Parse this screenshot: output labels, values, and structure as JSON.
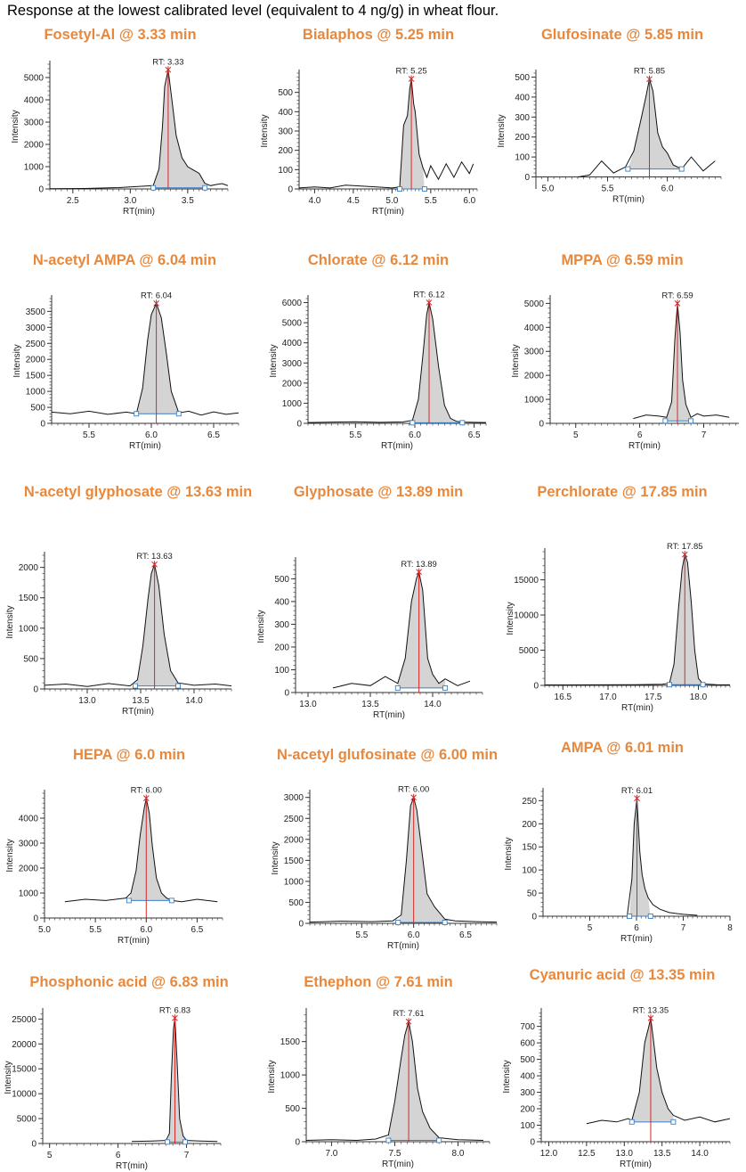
{
  "header": {
    "title": "Response at the lowest calibrated level (equivalent to 4 ng/g) in wheat flour."
  },
  "colors": {
    "title": "#e8883c",
    "peak_fill": "#d4d4d4",
    "trace": "#111111",
    "rt_line": "#d62828",
    "baseline": "#3a7fc4"
  },
  "chart_data": [
    {
      "type": "line",
      "title": "Fosetyl-Al @ 3.33 min",
      "xlabel": "RT(min)",
      "ylabel": "Intensity",
      "rt_label": "RT: 3.33",
      "xlim": [
        2.3,
        3.85
      ],
      "ylim": [
        0,
        5600
      ],
      "xticks": [
        2.5,
        3.0,
        3.5
      ],
      "yticks": [
        0,
        1000,
        2000,
        3000,
        4000,
        5000
      ],
      "xtick_labels": [
        "2.5",
        "3.0",
        "3.5"
      ],
      "ytick_labels": [
        "0",
        "1000",
        "2000",
        "3000",
        "4000",
        "5000"
      ],
      "peak": {
        "rt": 3.33,
        "height": 5350,
        "start": 3.2,
        "end": 3.65,
        "base": 50
      },
      "x": [
        2.3,
        2.6,
        2.9,
        3.1,
        3.2,
        3.25,
        3.28,
        3.3,
        3.33,
        3.36,
        3.4,
        3.45,
        3.5,
        3.55,
        3.6,
        3.65,
        3.7,
        3.75,
        3.8,
        3.85
      ],
      "y": [
        10,
        20,
        60,
        120,
        150,
        900,
        2800,
        4600,
        5350,
        4100,
        2400,
        1400,
        1000,
        850,
        700,
        250,
        150,
        200,
        240,
        150
      ]
    },
    {
      "type": "line",
      "title": "Bialaphos @ 5.25 min",
      "xlabel": "RT(min)",
      "ylabel": "Intensity",
      "rt_label": "RT: 5.25",
      "xlim": [
        3.8,
        6.1
      ],
      "ylim": [
        0,
        600
      ],
      "xticks": [
        4.0,
        4.5,
        5.0,
        5.5,
        6.0
      ],
      "yticks": [
        0,
        100,
        200,
        300,
        400,
        500
      ],
      "xtick_labels": [
        "4.0",
        "4.5",
        "5.0",
        "5.5",
        "6.0"
      ],
      "ytick_labels": [
        "0",
        "100",
        "200",
        "300",
        "400",
        "500"
      ],
      "peak": {
        "rt": 5.25,
        "height": 570,
        "start": 5.1,
        "end": 5.42,
        "base": 0
      },
      "x": [
        3.8,
        4.0,
        4.2,
        4.4,
        4.6,
        4.8,
        5.0,
        5.1,
        5.15,
        5.2,
        5.23,
        5.25,
        5.28,
        5.3,
        5.35,
        5.4,
        5.45,
        5.5,
        5.6,
        5.7,
        5.8,
        5.9,
        6.0,
        6.05
      ],
      "y": [
        5,
        10,
        5,
        20,
        15,
        10,
        5,
        10,
        330,
        380,
        520,
        570,
        440,
        400,
        180,
        110,
        60,
        120,
        50,
        130,
        60,
        140,
        80,
        130
      ]
    },
    {
      "type": "line",
      "title": "Glufosinate @ 5.85 min",
      "xlabel": "RT(min)",
      "ylabel": "Intensity",
      "rt_label": "RT: 5.85",
      "xlim": [
        4.9,
        6.45
      ],
      "ylim": [
        -60,
        520
      ],
      "xticks": [
        5.0,
        5.5,
        6.0
      ],
      "yticks": [
        0,
        100,
        200,
        300,
        400,
        500
      ],
      "xtick_labels": [
        "5.0",
        "5.5",
        "6.0"
      ],
      "ytick_labels": [
        "0",
        "100",
        "200",
        "300",
        "400",
        "500"
      ],
      "peak": {
        "rt": 5.85,
        "height": 490,
        "start": 5.67,
        "end": 6.12,
        "base": 40
      },
      "x": [
        5.25,
        5.35,
        5.45,
        5.55,
        5.65,
        5.72,
        5.78,
        5.82,
        5.85,
        5.88,
        5.92,
        5.96,
        6.0,
        6.05,
        6.12,
        6.2,
        6.3,
        6.4
      ],
      "y": [
        0,
        10,
        80,
        20,
        50,
        130,
        290,
        400,
        490,
        430,
        220,
        150,
        120,
        60,
        40,
        100,
        30,
        80
      ]
    },
    {
      "type": "line",
      "title": "N-acetyl AMPA @ 6.04 min",
      "xlabel": "RT(min)",
      "ylabel": "Intensity",
      "rt_label": "RT: 6.04",
      "xlim": [
        5.2,
        6.7
      ],
      "ylim": [
        0,
        3900
      ],
      "xticks": [
        5.5,
        6.0,
        6.5
      ],
      "yticks": [
        0,
        500,
        1000,
        1500,
        2000,
        2500,
        3000,
        3500
      ],
      "xtick_labels": [
        "5.5",
        "6.0",
        "6.5"
      ],
      "ytick_labels": [
        "0",
        "500",
        "1000",
        "1500",
        "2000",
        "2500",
        "3000",
        "3500"
      ],
      "peak": {
        "rt": 6.04,
        "height": 3750,
        "start": 5.88,
        "end": 6.22,
        "base": 300
      },
      "x": [
        5.2,
        5.35,
        5.5,
        5.65,
        5.8,
        5.88,
        5.93,
        5.97,
        6.0,
        6.04,
        6.08,
        6.12,
        6.16,
        6.22,
        6.3,
        6.4,
        6.5,
        6.6,
        6.7
      ],
      "y": [
        350,
        300,
        380,
        280,
        350,
        300,
        1100,
        2600,
        3400,
        3750,
        3300,
        2200,
        1000,
        330,
        380,
        260,
        360,
        280,
        330
      ]
    },
    {
      "type": "line",
      "title": "Chlorate @ 6.12 min",
      "xlabel": "RT(min)",
      "ylabel": "Intensity",
      "rt_label": "RT: 6.12",
      "xlim": [
        5.1,
        6.6
      ],
      "ylim": [
        0,
        6200
      ],
      "xticks": [
        5.5,
        6.0,
        6.5
      ],
      "yticks": [
        0,
        1000,
        2000,
        3000,
        4000,
        5000,
        6000
      ],
      "xtick_labels": [
        "5.5",
        "6.0",
        "6.5"
      ],
      "ytick_labels": [
        "0",
        "1000",
        "2000",
        "3000",
        "4000",
        "5000",
        "6000"
      ],
      "peak": {
        "rt": 6.12,
        "height": 6000,
        "start": 5.98,
        "end": 6.4,
        "base": 30
      },
      "x": [
        5.1,
        5.3,
        5.5,
        5.7,
        5.9,
        5.98,
        6.03,
        6.07,
        6.1,
        6.12,
        6.15,
        6.2,
        6.25,
        6.3,
        6.35,
        6.4,
        6.5,
        6.6
      ],
      "y": [
        40,
        60,
        80,
        50,
        70,
        150,
        1200,
        3500,
        5400,
        6000,
        5200,
        2800,
        900,
        250,
        100,
        60,
        50,
        40
      ]
    },
    {
      "type": "line",
      "title": "MPPA @ 6.59 min",
      "xlabel": "RT(min)",
      "ylabel": "Intensity",
      "rt_label": "RT: 6.59",
      "xlim": [
        4.6,
        7.55
      ],
      "ylim": [
        0,
        5200
      ],
      "xticks": [
        5,
        6,
        7
      ],
      "yticks": [
        0,
        1000,
        2000,
        3000,
        4000,
        5000
      ],
      "xtick_labels": [
        "5",
        "6",
        "7"
      ],
      "ytick_labels": [
        "0",
        "1000",
        "2000",
        "3000",
        "4000",
        "5000"
      ],
      "peak": {
        "rt": 6.59,
        "height": 5000,
        "start": 6.4,
        "end": 6.8,
        "base": 100
      },
      "x": [
        5.9,
        6.1,
        6.3,
        6.42,
        6.5,
        6.55,
        6.59,
        6.63,
        6.67,
        6.72,
        6.8,
        6.9,
        7.0,
        7.2,
        7.4
      ],
      "y": [
        200,
        350,
        300,
        250,
        900,
        3500,
        5000,
        3800,
        1800,
        800,
        250,
        400,
        300,
        350,
        250
      ]
    },
    {
      "type": "line",
      "title": "N-acetyl glyphosate @ 13.63 min",
      "xlabel": "RT(min)",
      "ylabel": "Intensity",
      "rt_label": "RT: 13.63",
      "xlim": [
        12.6,
        14.35
      ],
      "ylim": [
        0,
        2200
      ],
      "xticks": [
        13.0,
        13.5,
        14.0
      ],
      "yticks": [
        0,
        500,
        1000,
        1500,
        2000
      ],
      "xtick_labels": [
        "13.0",
        "13.5",
        "14.0"
      ],
      "ytick_labels": [
        "0",
        "500",
        "1000",
        "1500",
        "2000"
      ],
      "peak": {
        "rt": 13.63,
        "height": 2050,
        "start": 13.45,
        "end": 13.85,
        "base": 50
      },
      "x": [
        12.6,
        12.8,
        13.0,
        13.2,
        13.4,
        13.47,
        13.52,
        13.57,
        13.6,
        13.63,
        13.67,
        13.72,
        13.78,
        13.85,
        14.0,
        14.2,
        14.35
      ],
      "y": [
        60,
        80,
        40,
        90,
        50,
        150,
        700,
        1500,
        1900,
        2050,
        1700,
        900,
        300,
        100,
        60,
        80,
        50
      ]
    },
    {
      "type": "line",
      "title": "Glyphosate @ 13.89 min",
      "xlabel": "RT(min)",
      "ylabel": "Intensity",
      "rt_label": "RT: 13.89",
      "xlim": [
        12.9,
        14.4
      ],
      "ylim": [
        0,
        580
      ],
      "xticks": [
        13.0,
        13.5,
        14.0
      ],
      "yticks": [
        0,
        100,
        200,
        300,
        400,
        500
      ],
      "xtick_labels": [
        "13.0",
        "13.5",
        "14.0"
      ],
      "ytick_labels": [
        "0",
        "100",
        "200",
        "300",
        "400",
        "500"
      ],
      "peak": {
        "rt": 13.89,
        "height": 530,
        "start": 13.72,
        "end": 14.1,
        "base": 20
      },
      "x": [
        13.2,
        13.35,
        13.5,
        13.62,
        13.72,
        13.78,
        13.83,
        13.87,
        13.89,
        13.92,
        13.96,
        14.0,
        14.05,
        14.1,
        14.2,
        14.3
      ],
      "y": [
        20,
        40,
        30,
        70,
        40,
        150,
        400,
        500,
        530,
        450,
        150,
        80,
        40,
        60,
        30,
        50
      ]
    },
    {
      "type": "line",
      "title": "Perchlorate @ 17.85 min",
      "xlabel": "RT(min)",
      "ylabel": "Intensity",
      "rt_label": "RT: 17.85",
      "xlim": [
        16.3,
        18.35
      ],
      "ylim": [
        0,
        19000
      ],
      "xticks": [
        16.5,
        17.0,
        17.5,
        18.0
      ],
      "yticks": [
        0,
        5000,
        10000,
        15000
      ],
      "xtick_labels": [
        "16.5",
        "17.0",
        "17.5",
        "18.0"
      ],
      "ytick_labels": [
        "0",
        "5000",
        "10000",
        "15000"
      ],
      "peak": {
        "rt": 17.85,
        "height": 18600,
        "start": 17.68,
        "end": 18.05,
        "base": 100
      },
      "x": [
        16.3,
        16.8,
        17.3,
        17.6,
        17.68,
        17.73,
        17.78,
        17.82,
        17.85,
        17.88,
        17.92,
        17.96,
        18.0,
        18.05,
        18.2,
        18.35
      ],
      "y": [
        60,
        80,
        100,
        150,
        300,
        3000,
        11000,
        16500,
        18600,
        17500,
        12000,
        5000,
        1000,
        200,
        100,
        80
      ]
    },
    {
      "type": "line",
      "title": "HEPA @ 6.0 min",
      "xlabel": "RT(min)",
      "ylabel": "Intensity",
      "rt_label": "RT: 6.00",
      "xlim": [
        5.0,
        6.75
      ],
      "ylim": [
        0,
        5000
      ],
      "xticks": [
        5.0,
        5.5,
        6.0,
        6.5
      ],
      "yticks": [
        0,
        1000,
        2000,
        3000,
        4000
      ],
      "xtick_labels": [
        "5.0",
        "5.5",
        "6.0",
        "6.5"
      ],
      "ytick_labels": [
        "0",
        "1000",
        "2000",
        "3000",
        "4000"
      ],
      "peak": {
        "rt": 6.0,
        "height": 4800,
        "start": 5.83,
        "end": 6.25,
        "base": 700
      },
      "x": [
        5.2,
        5.4,
        5.6,
        5.8,
        5.85,
        5.9,
        5.94,
        5.98,
        6.0,
        6.03,
        6.06,
        6.1,
        6.15,
        6.2,
        6.25,
        6.35,
        6.5,
        6.7
      ],
      "y": [
        650,
        750,
        700,
        800,
        1000,
        1900,
        3300,
        4400,
        4800,
        4200,
        2900,
        1600,
        1000,
        800,
        700,
        650,
        750,
        650
      ]
    },
    {
      "type": "line",
      "title": "N-acetyl glufosinate @ 6.00 min",
      "xlabel": "RT(min)",
      "ylabel": "Intensity",
      "rt_label": "RT: 6.00",
      "xlim": [
        5.0,
        6.8
      ],
      "ylim": [
        0,
        3100
      ],
      "xticks": [
        5.5,
        6.0,
        6.5
      ],
      "yticks": [
        0,
        500,
        1000,
        1500,
        2000,
        2500,
        3000
      ],
      "xtick_labels": [
        "5.5",
        "6.0",
        "6.5"
      ],
      "ytick_labels": [
        "0",
        "500",
        "1000",
        "1500",
        "2000",
        "2500",
        "3000"
      ],
      "peak": {
        "rt": 6.0,
        "height": 3000,
        "start": 5.85,
        "end": 6.3,
        "base": 20
      },
      "x": [
        5.0,
        5.3,
        5.6,
        5.8,
        5.88,
        5.93,
        5.97,
        6.0,
        6.03,
        6.08,
        6.13,
        6.2,
        6.3,
        6.4,
        6.6,
        6.8
      ],
      "y": [
        30,
        50,
        40,
        60,
        200,
        1500,
        2800,
        3000,
        2700,
        1700,
        700,
        400,
        100,
        60,
        40,
        30
      ]
    },
    {
      "type": "line",
      "title": "AMPA @ 6.01 min",
      "xlabel": "RT(min)",
      "ylabel": "Intensity",
      "rt_label": "RT: 6.01",
      "xlim": [
        4.0,
        8.0
      ],
      "ylim": [
        0,
        270
      ],
      "xticks": [
        5,
        6,
        7,
        8
      ],
      "yticks": [
        0,
        50,
        100,
        150,
        200,
        250
      ],
      "xtick_labels": [
        "5",
        "6",
        "7",
        "8"
      ],
      "ytick_labels": [
        "0",
        "50",
        "100",
        "150",
        "200",
        "250"
      ],
      "peak": {
        "rt": 6.01,
        "height": 255,
        "start": 5.85,
        "end": 6.3,
        "base": 0
      },
      "x": [
        5.8,
        5.9,
        5.95,
        6.01,
        6.07,
        6.12,
        6.18,
        6.25,
        6.35,
        6.5,
        6.7,
        7.0,
        7.3
      ],
      "y": [
        0,
        80,
        200,
        255,
        140,
        90,
        60,
        40,
        25,
        15,
        8,
        4,
        2
      ]
    },
    {
      "type": "line",
      "title": "Phosphonic acid @ 6.83 min",
      "xlabel": "RT(min)",
      "ylabel": "Intensity",
      "rt_label": "RT: 6.83",
      "xlim": [
        4.9,
        7.5
      ],
      "ylim": [
        0,
        26500
      ],
      "xticks": [
        5,
        6,
        7
      ],
      "yticks": [
        0,
        5000,
        10000,
        15000,
        20000,
        25000
      ],
      "xtick_labels": [
        "5",
        "6",
        "7"
      ],
      "ytick_labels": [
        "0",
        "5000",
        "10000",
        "15000",
        "20000",
        "25000"
      ],
      "peak": {
        "rt": 6.83,
        "height": 25200,
        "start": 6.72,
        "end": 6.98,
        "base": 300
      },
      "x": [
        6.2,
        6.5,
        6.7,
        6.75,
        6.78,
        6.81,
        6.83,
        6.86,
        6.9,
        6.95,
        7.0,
        7.2,
        7.45
      ],
      "y": [
        400,
        500,
        600,
        2000,
        14000,
        23000,
        25200,
        17000,
        5000,
        1500,
        600,
        500,
        400
      ]
    },
    {
      "type": "line",
      "title": "Ethephon @ 7.61 min",
      "xlabel": "RT(min)",
      "ylabel": "Intensity",
      "rt_label": "RT: 7.61",
      "xlim": [
        6.8,
        8.25
      ],
      "ylim": [
        0,
        1950
      ],
      "xticks": [
        7.0,
        7.5,
        8.0
      ],
      "yticks": [
        0,
        500,
        1000,
        1500
      ],
      "xtick_labels": [
        "7.0",
        "7.5",
        "8.0"
      ],
      "ytick_labels": [
        "0",
        "500",
        "1000",
        "1500"
      ],
      "peak": {
        "rt": 7.61,
        "height": 1800,
        "start": 7.45,
        "end": 7.85,
        "base": 20
      },
      "x": [
        6.8,
        7.0,
        7.2,
        7.35,
        7.45,
        7.5,
        7.55,
        7.58,
        7.61,
        7.64,
        7.68,
        7.72,
        7.78,
        7.85,
        8.0,
        8.2
      ],
      "y": [
        20,
        30,
        20,
        40,
        100,
        600,
        1250,
        1600,
        1800,
        1500,
        800,
        450,
        200,
        60,
        30,
        20
      ]
    },
    {
      "type": "line",
      "title": "Cyanuric acid @ 13.35 min",
      "xlabel": "RT(min)",
      "ylabel": "Intensity",
      "rt_label": "RT: 13.35",
      "xlim": [
        11.9,
        14.4
      ],
      "ylim": [
        0,
        790
      ],
      "xticks": [
        12.0,
        12.5,
        13.0,
        13.5,
        14.0
      ],
      "yticks": [
        0,
        100,
        200,
        300,
        400,
        500,
        600,
        700
      ],
      "xtick_labels": [
        "12.0",
        "12.5",
        "13.0",
        "13.5",
        "14.0"
      ],
      "ytick_labels": [
        "0",
        "100",
        "200",
        "300",
        "400",
        "500",
        "600",
        "700"
      ],
      "peak": {
        "rt": 13.35,
        "height": 750,
        "start": 13.1,
        "end": 13.65,
        "base": 120
      },
      "x": [
        12.5,
        12.7,
        12.9,
        13.05,
        13.1,
        13.2,
        13.27,
        13.32,
        13.35,
        13.38,
        13.43,
        13.5,
        13.58,
        13.65,
        13.8,
        14.0,
        14.2,
        14.4
      ],
      "y": [
        110,
        130,
        120,
        140,
        130,
        300,
        600,
        690,
        750,
        640,
        450,
        300,
        200,
        160,
        130,
        150,
        120,
        140
      ]
    }
  ]
}
